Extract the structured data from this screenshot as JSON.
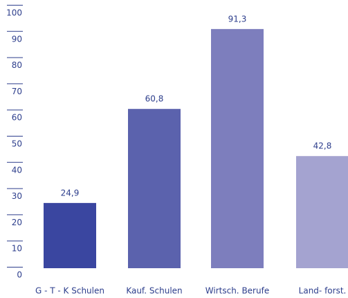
{
  "chart_data": {
    "type": "bar",
    "categories": [
      "G - T - K Schulen",
      "Kauf. Schulen",
      "Wirtsch. Berufe",
      "Land- forst."
    ],
    "values": [
      24.9,
      60.8,
      91.3,
      42.8
    ],
    "value_labels": [
      "24,9",
      "60,8",
      "91,3",
      "42,8"
    ],
    "colors": [
      "#3a46a0",
      "#5b62ad",
      "#7d7ebd",
      "#a4a3d0"
    ],
    "ylim": [
      0,
      100
    ],
    "yticks": [
      0,
      10,
      20,
      30,
      40,
      50,
      60,
      70,
      80,
      90,
      100
    ]
  }
}
